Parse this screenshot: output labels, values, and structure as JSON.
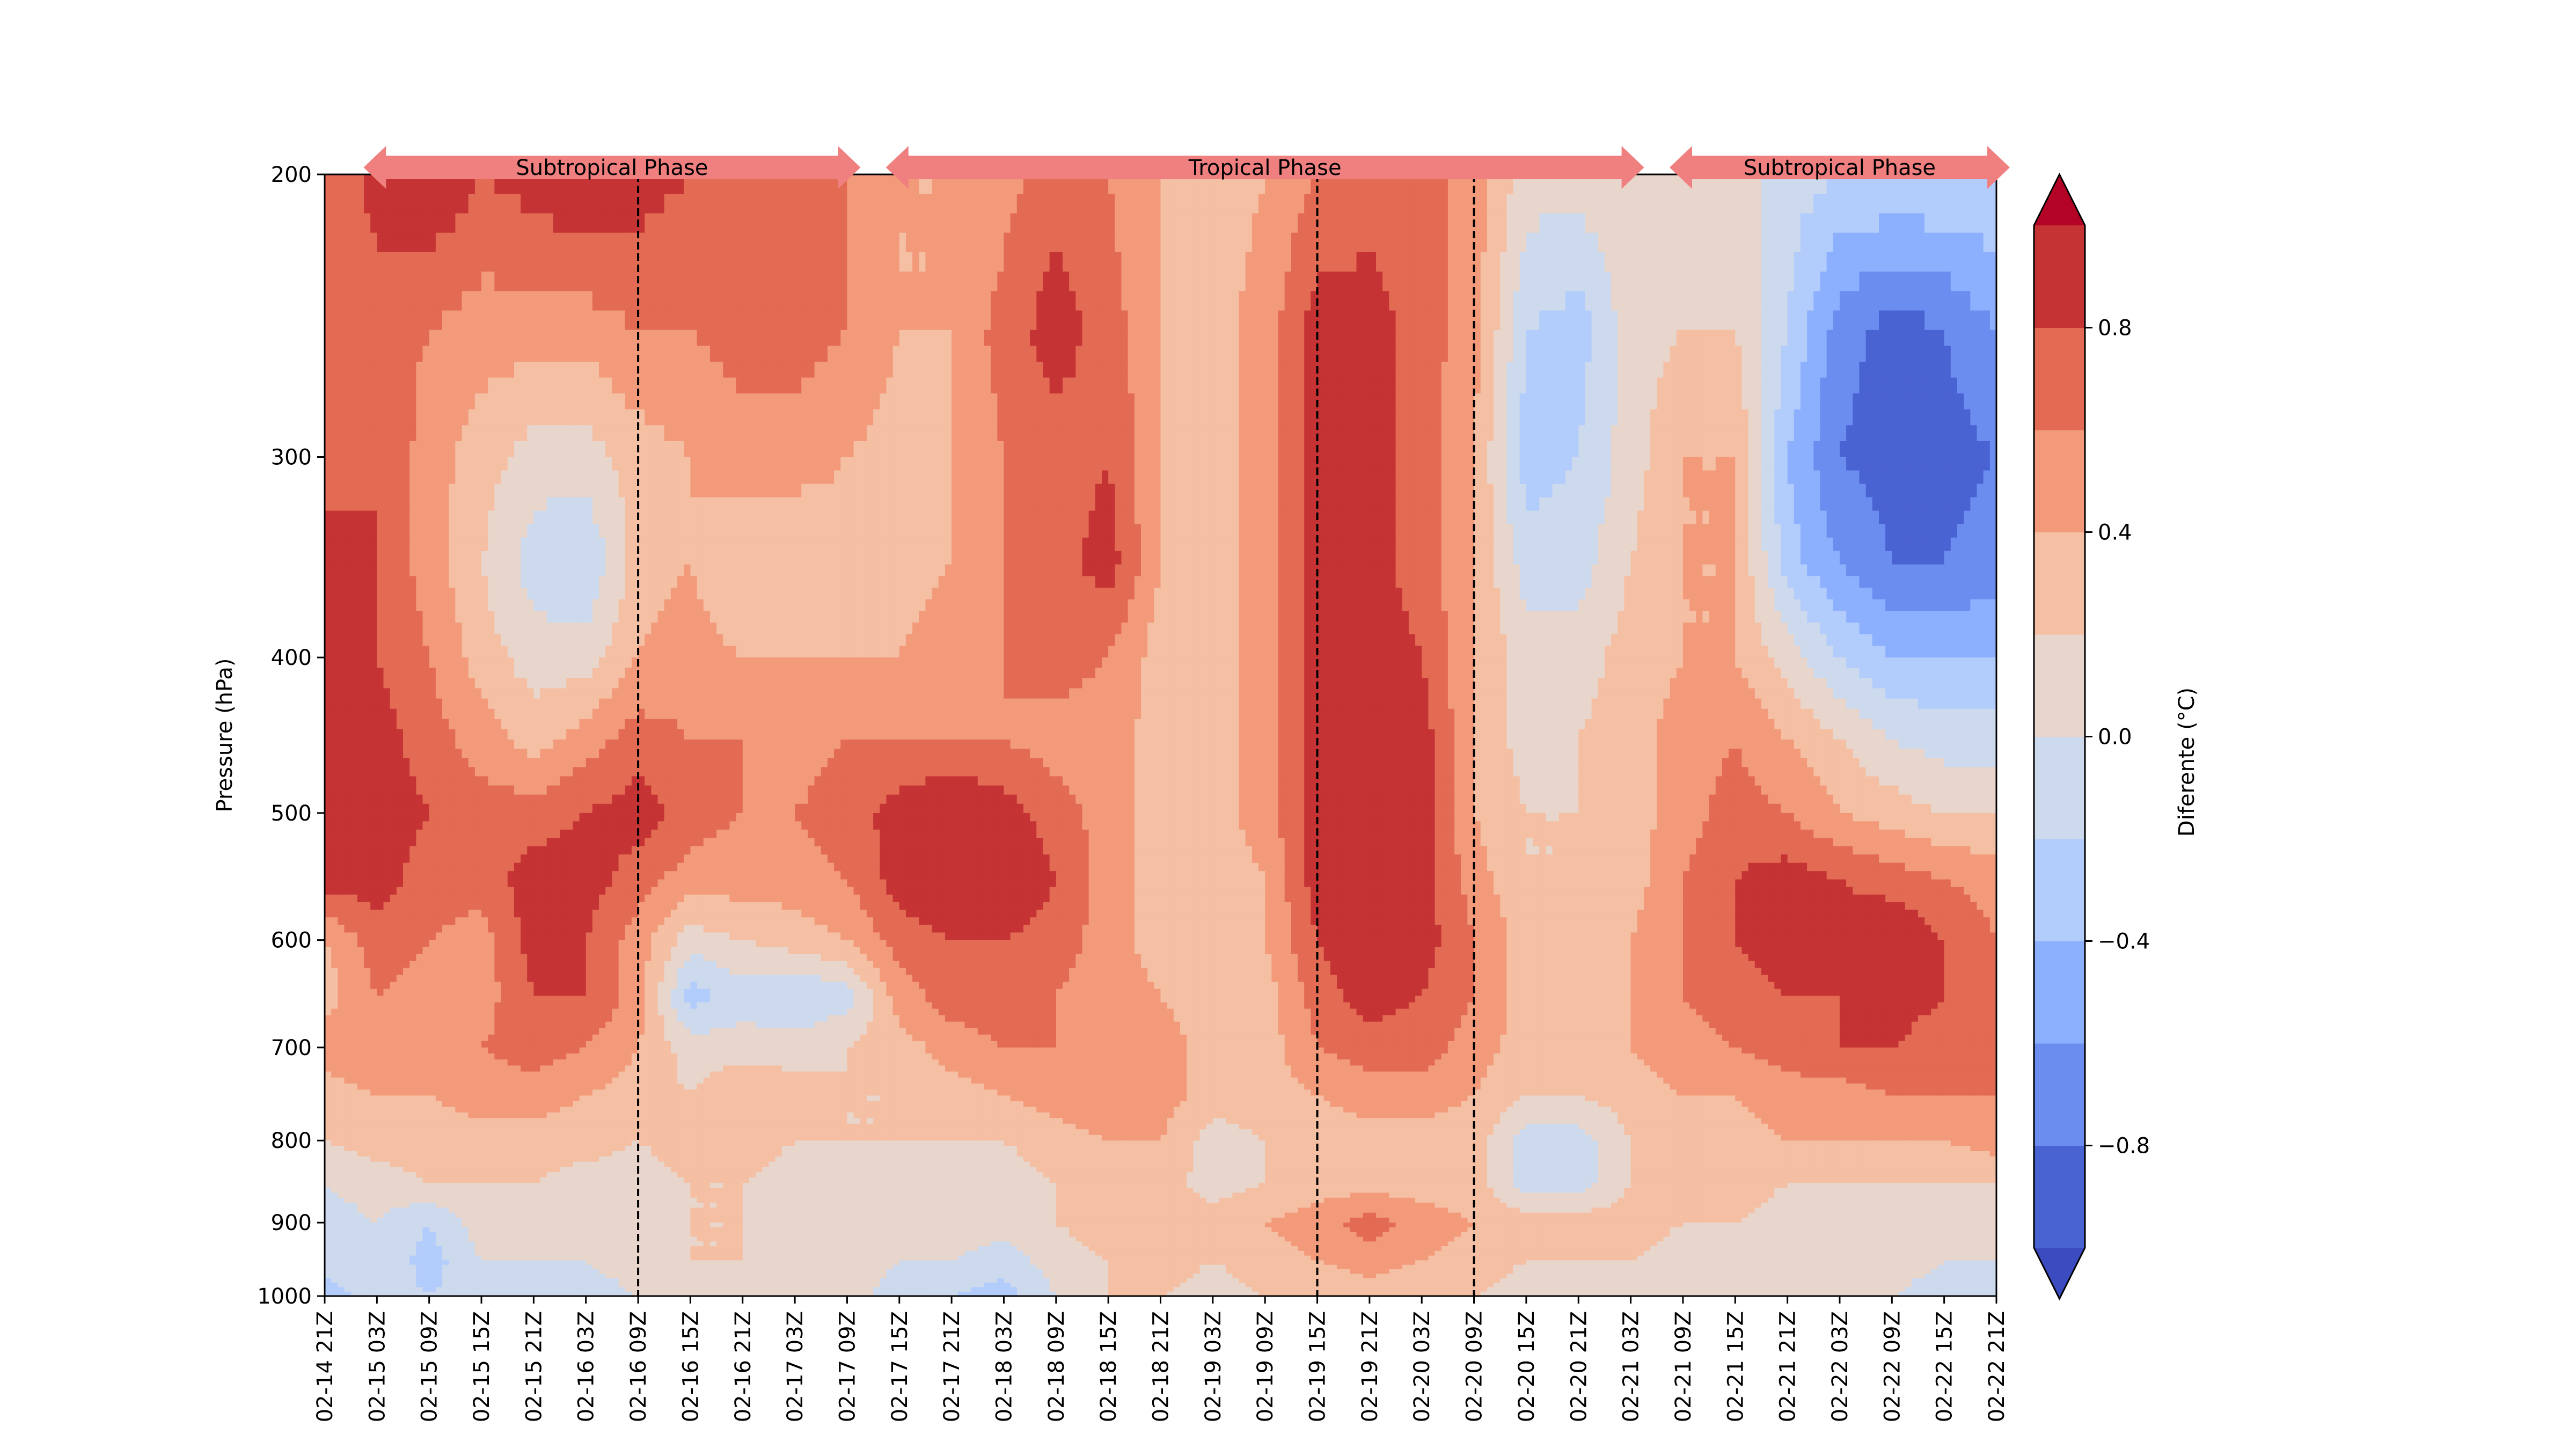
{
  "chart_data": {
    "type": "heatmap",
    "title": "",
    "xlabel": "",
    "ylabel": "Pressure (hPa)",
    "colorbar_label": "Diferente (°C)",
    "x": [
      "02-14 21Z",
      "02-15 03Z",
      "02-15 09Z",
      "02-15 15Z",
      "02-15 21Z",
      "02-16 03Z",
      "02-16 09Z",
      "02-16 15Z",
      "02-16 21Z",
      "02-17 03Z",
      "02-17 09Z",
      "02-17 15Z",
      "02-17 21Z",
      "02-18 03Z",
      "02-18 09Z",
      "02-18 15Z",
      "02-18 21Z",
      "02-19 03Z",
      "02-19 09Z",
      "02-19 15Z",
      "02-19 21Z",
      "02-20 03Z",
      "02-20 09Z",
      "02-20 15Z",
      "02-20 21Z",
      "02-21 03Z",
      "02-21 09Z",
      "02-21 15Z",
      "02-21 21Z",
      "02-22 03Z",
      "02-22 09Z",
      "02-22 15Z",
      "02-22 21Z"
    ],
    "y": [
      200,
      250,
      300,
      350,
      400,
      450,
      500,
      550,
      600,
      650,
      700,
      750,
      800,
      850,
      900,
      950,
      1000
    ],
    "y_ticks": [
      200,
      300,
      400,
      500,
      600,
      700,
      800,
      900,
      1000
    ],
    "y_scale": "log",
    "y_inverted": true,
    "colorbar_ticks": [
      0.8,
      0.4,
      0.0,
      -0.4,
      -0.8
    ],
    "colorbar_tick_labels": [
      "0.8",
      "0.4",
      "0.0",
      "−0.4",
      "−0.8"
    ],
    "levels": [
      -1.0,
      -0.8,
      -0.6,
      -0.4,
      -0.2,
      0.0,
      0.2,
      0.4,
      0.6,
      0.8,
      1.0
    ],
    "colormap": [
      "#3b4cc0",
      "#4a63d3",
      "#6b8df0",
      "#8db0fe",
      "#b2ccfb",
      "#cdd9ec",
      "#e8d6cc",
      "#f5bfa4",
      "#f29a7a",
      "#e36b53",
      "#c53334",
      "#b40426"
    ],
    "z": [
      [
        0.6,
        0.9,
        1.0,
        0.8,
        0.9,
        1.0,
        0.9,
        0.8,
        0.8,
        0.7,
        0.6,
        0.4,
        0.4,
        0.5,
        0.7,
        0.6,
        0.4,
        0.3,
        0.4,
        0.6,
        0.7,
        0.7,
        0.5,
        0.1,
        0.1,
        0.2,
        0.1,
        0.1,
        -0.1,
        -0.2,
        -0.2,
        -0.2,
        -0.2
      ],
      [
        0.6,
        0.7,
        0.6,
        0.5,
        0.5,
        0.5,
        0.6,
        0.6,
        0.7,
        0.7,
        0.6,
        0.4,
        0.4,
        0.7,
        0.9,
        0.7,
        0.4,
        0.3,
        0.5,
        0.9,
        0.9,
        0.7,
        0.5,
        -0.2,
        -0.3,
        0.1,
        0.2,
        0.2,
        -0.2,
        -0.7,
        -0.9,
        -0.8,
        -0.6
      ],
      [
        0.7,
        0.8,
        0.5,
        0.3,
        0.1,
        0.1,
        0.3,
        0.4,
        0.5,
        0.5,
        0.4,
        0.3,
        0.4,
        0.6,
        0.7,
        0.8,
        0.4,
        0.3,
        0.5,
        0.9,
        0.9,
        0.7,
        0.4,
        -0.3,
        -0.2,
        0.1,
        0.4,
        0.4,
        -0.4,
        -0.8,
        -0.9,
        -0.9,
        -0.8
      ],
      [
        0.9,
        0.8,
        0.5,
        0.2,
        -0.1,
        -0.2,
        0.3,
        0.4,
        0.2,
        0.2,
        0.3,
        0.3,
        0.4,
        0.6,
        0.7,
        0.9,
        0.4,
        0.3,
        0.5,
        0.9,
        0.9,
        0.7,
        0.4,
        -0.1,
        -0.1,
        0.2,
        0.4,
        0.4,
        -0.3,
        -0.6,
        -0.8,
        -0.8,
        -0.7
      ],
      [
        0.9,
        0.8,
        0.6,
        0.3,
        0.1,
        0.1,
        0.4,
        0.5,
        0.4,
        0.4,
        0.4,
        0.4,
        0.5,
        0.6,
        0.7,
        0.6,
        0.3,
        0.3,
        0.5,
        0.9,
        0.9,
        0.8,
        0.4,
        0.1,
        0.1,
        0.3,
        0.4,
        0.4,
        0.1,
        -0.2,
        -0.4,
        -0.4,
        -0.4
      ],
      [
        1.0,
        0.9,
        0.7,
        0.5,
        0.3,
        0.5,
        0.7,
        0.6,
        0.6,
        0.5,
        0.6,
        0.6,
        0.6,
        0.6,
        0.5,
        0.5,
        0.3,
        0.3,
        0.5,
        0.9,
        0.9,
        0.9,
        0.4,
        0.1,
        0.2,
        0.3,
        0.5,
        0.6,
        0.4,
        0.2,
        0.0,
        -0.1,
        -0.1
      ],
      [
        1.0,
        0.9,
        0.8,
        0.7,
        0.7,
        0.8,
        0.9,
        0.7,
        0.6,
        0.6,
        0.7,
        0.9,
        1.0,
        0.9,
        0.7,
        0.5,
        0.3,
        0.3,
        0.5,
        0.9,
        1.0,
        0.9,
        0.4,
        0.2,
        0.2,
        0.3,
        0.5,
        0.7,
        0.6,
        0.4,
        0.3,
        0.2,
        0.2
      ],
      [
        0.9,
        0.9,
        0.7,
        0.7,
        0.9,
        0.9,
        0.7,
        0.5,
        0.5,
        0.5,
        0.6,
        0.9,
        1.0,
        1.0,
        0.8,
        0.5,
        0.3,
        0.3,
        0.4,
        0.9,
        1.0,
        0.9,
        0.5,
        0.2,
        0.2,
        0.3,
        0.6,
        0.8,
        0.9,
        0.8,
        0.7,
        0.6,
        0.5
      ],
      [
        0.4,
        0.7,
        0.6,
        0.5,
        0.9,
        0.8,
        0.5,
        0.1,
        0.2,
        0.3,
        0.4,
        0.7,
        0.8,
        0.8,
        0.7,
        0.5,
        0.3,
        0.3,
        0.4,
        0.8,
        1.0,
        0.9,
        0.6,
        0.3,
        0.2,
        0.4,
        0.6,
        0.8,
        0.9,
        0.9,
        1.0,
        0.8,
        0.6
      ],
      [
        0.3,
        0.6,
        0.5,
        0.5,
        0.8,
        0.8,
        0.5,
        -0.3,
        -0.1,
        -0.2,
        -0.1,
        0.5,
        0.7,
        0.7,
        0.6,
        0.5,
        0.4,
        0.3,
        0.3,
        0.7,
        0.9,
        0.8,
        0.6,
        0.3,
        0.2,
        0.4,
        0.6,
        0.7,
        0.8,
        0.8,
        0.9,
        0.8,
        0.6
      ],
      [
        0.5,
        0.6,
        0.5,
        0.6,
        0.7,
        0.6,
        0.4,
        0.1,
        0.1,
        0.1,
        0.2,
        0.3,
        0.5,
        0.6,
        0.6,
        0.6,
        0.5,
        0.3,
        0.3,
        0.6,
        0.7,
        0.7,
        0.5,
        0.3,
        0.3,
        0.4,
        0.5,
        0.6,
        0.7,
        0.8,
        0.8,
        0.7,
        0.6
      ],
      [
        0.3,
        0.4,
        0.4,
        0.5,
        0.5,
        0.4,
        0.3,
        0.2,
        0.4,
        0.3,
        0.2,
        0.2,
        0.3,
        0.4,
        0.5,
        0.6,
        0.5,
        0.3,
        0.3,
        0.4,
        0.5,
        0.5,
        0.4,
        0.2,
        0.2,
        0.3,
        0.4,
        0.4,
        0.5,
        0.5,
        0.6,
        0.6,
        0.6
      ],
      [
        0.2,
        0.3,
        0.3,
        0.3,
        0.3,
        0.3,
        0.2,
        0.3,
        0.3,
        0.2,
        0.2,
        0.2,
        0.2,
        0.2,
        0.3,
        0.4,
        0.4,
        0.1,
        0.2,
        0.3,
        0.3,
        0.3,
        0.3,
        -0.1,
        -0.1,
        0.2,
        0.3,
        0.3,
        0.4,
        0.4,
        0.4,
        0.4,
        0.5
      ],
      [
        0.0,
        0.1,
        0.2,
        0.2,
        0.2,
        0.1,
        0.1,
        0.2,
        0.2,
        0.1,
        0.1,
        0.1,
        0.1,
        0.1,
        0.2,
        0.3,
        0.3,
        0.1,
        0.2,
        0.3,
        0.3,
        0.3,
        0.3,
        -0.1,
        -0.1,
        0.2,
        0.2,
        0.3,
        0.2,
        0.2,
        0.2,
        0.2,
        0.2
      ],
      [
        -0.1,
        0.0,
        -0.2,
        0.1,
        0.1,
        0.0,
        0.1,
        0.2,
        0.2,
        0.1,
        0.1,
        0.0,
        0.1,
        0.1,
        0.2,
        0.3,
        0.4,
        0.3,
        0.4,
        0.5,
        0.7,
        0.5,
        0.4,
        0.3,
        0.3,
        0.3,
        0.2,
        0.2,
        0.1,
        0.1,
        0.1,
        0.1,
        0.1
      ],
      [
        -0.1,
        0.0,
        -0.3,
        0.0,
        0.0,
        0.0,
        0.1,
        0.2,
        0.2,
        0.1,
        0.1,
        0.0,
        0.0,
        -0.1,
        0.1,
        0.2,
        0.3,
        0.2,
        0.3,
        0.4,
        0.5,
        0.4,
        0.3,
        0.2,
        0.2,
        0.2,
        0.1,
        0.1,
        0.1,
        0.1,
        0.1,
        0.0,
        0.0
      ],
      [
        -0.3,
        -0.1,
        -0.2,
        -0.1,
        -0.1,
        -0.1,
        0.0,
        0.1,
        0.1,
        0.1,
        0.1,
        -0.1,
        -0.2,
        -0.3,
        0.0,
        0.2,
        0.2,
        0.1,
        0.2,
        0.2,
        0.3,
        0.2,
        0.2,
        0.1,
        0.1,
        0.1,
        0.1,
        0.1,
        0.1,
        0.1,
        0.0,
        -0.1,
        -0.1
      ]
    ],
    "vertical_lines": [
      "02-16 09Z",
      "02-19 15Z",
      "02-20 09Z"
    ],
    "phase_arrows": [
      {
        "label": "Subtropical Phase",
        "start": "02-15 03Z",
        "end": "02-17 09Z",
        "color": "#f08080"
      },
      {
        "label": "Tropical Phase",
        "start": "02-17 15Z",
        "end": "02-21 03Z",
        "color": "#f08080"
      },
      {
        "label": "Subtropical Phase",
        "start": "02-21 09Z",
        "end": "02-22 21Z",
        "color": "#f08080"
      }
    ]
  }
}
